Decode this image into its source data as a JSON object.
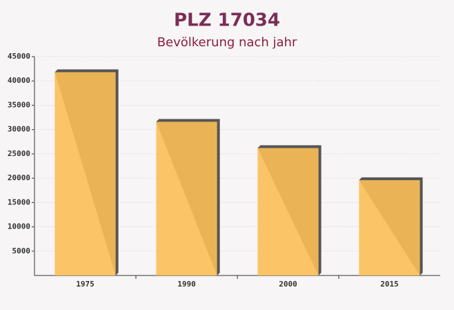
{
  "chart_data": {
    "type": "bar",
    "title": "PLZ 17034",
    "subtitle": "Bevölkerung nach jahr",
    "categories": [
      "1975",
      "1990",
      "2000",
      "2015"
    ],
    "values": [
      41800,
      31600,
      26200,
      19600
    ],
    "color": "#fbbf56",
    "ylim": [
      0,
      45000
    ],
    "yticks": [
      5000,
      10000,
      15000,
      20000,
      25000,
      30000,
      35000,
      40000,
      45000
    ],
    "grid": true
  }
}
